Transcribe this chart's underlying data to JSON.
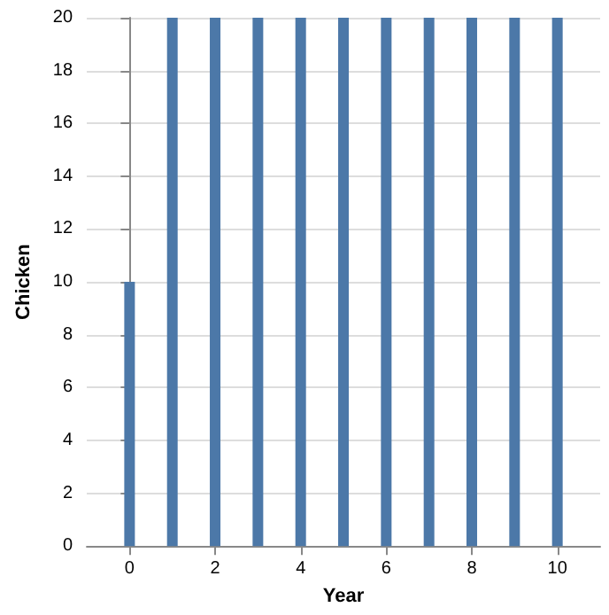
{
  "chart_data": {
    "type": "bar",
    "xlabel": "Year",
    "ylabel": "Chicken",
    "x": [
      0,
      1,
      2,
      3,
      4,
      5,
      6,
      7,
      8,
      9,
      10
    ],
    "values": [
      10,
      20,
      20,
      20,
      20,
      20,
      20,
      20,
      20,
      20,
      20
    ],
    "color": "#4c78a8",
    "xlim": [
      -1,
      11
    ],
    "xticks": [
      0,
      2,
      4,
      6,
      8,
      10
    ],
    "ylim": [
      0,
      20
    ],
    "yticks": [
      0,
      2,
      4,
      6,
      8,
      10,
      12,
      14,
      16,
      18,
      20
    ],
    "grid": true
  }
}
